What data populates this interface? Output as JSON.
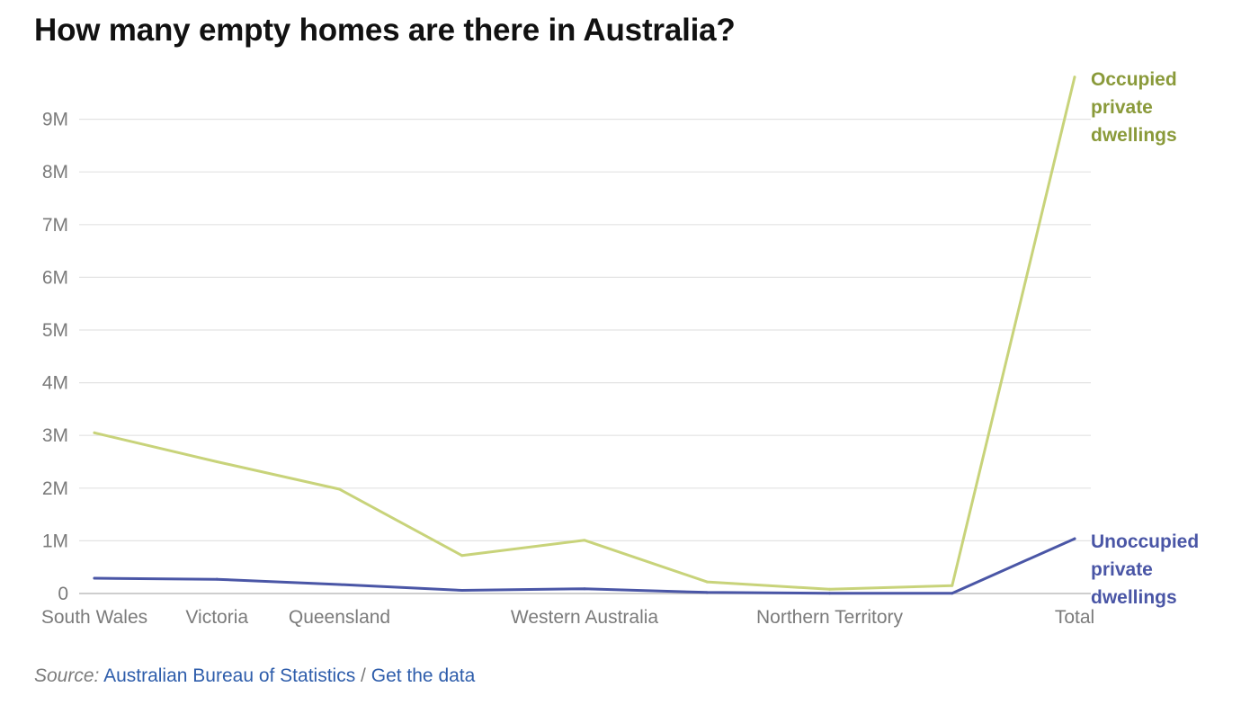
{
  "chart_data": {
    "type": "line",
    "title": "How many empty homes are there in Australia?",
    "xlabel": "",
    "ylabel": "",
    "categories": [
      "South Wales",
      "Victoria",
      "Queensland",
      "",
      "Western Australia",
      "",
      "Northern Territory",
      "",
      "Total"
    ],
    "y_ticks": [
      {
        "value": 0,
        "label": "0"
      },
      {
        "value": 1000000,
        "label": "1M"
      },
      {
        "value": 2000000,
        "label": "2M"
      },
      {
        "value": 3000000,
        "label": "3M"
      },
      {
        "value": 4000000,
        "label": "4M"
      },
      {
        "value": 5000000,
        "label": "5M"
      },
      {
        "value": 6000000,
        "label": "6M"
      },
      {
        "value": 7000000,
        "label": "7M"
      },
      {
        "value": 8000000,
        "label": "8M"
      },
      {
        "value": 9000000,
        "label": "9M"
      }
    ],
    "ylim": [
      0,
      9800000
    ],
    "grid": true,
    "legend": "direct labels at right end of lines",
    "series": [
      {
        "name": "Occupied private dwellings",
        "label_lines": [
          "Occupied",
          "private",
          "dwellings"
        ],
        "color": "#c8d37a",
        "label_color": "#8a9a3a",
        "values": [
          3050000,
          2500000,
          1980000,
          720000,
          1010000,
          220000,
          80000,
          150000,
          9800000
        ]
      },
      {
        "name": "Unoccupied private dwellings",
        "label_lines": [
          "Unoccupied",
          "private",
          "dwellings"
        ],
        "color": "#4a56a6",
        "label_color": "#4a56a6",
        "values": [
          290000,
          270000,
          170000,
          60000,
          90000,
          20000,
          5000,
          5000,
          1040000
        ]
      }
    ]
  },
  "source": {
    "prefix": "Source:",
    "link": "Australian Bureau of Statistics",
    "separator": "/",
    "data_link": "Get the data"
  }
}
